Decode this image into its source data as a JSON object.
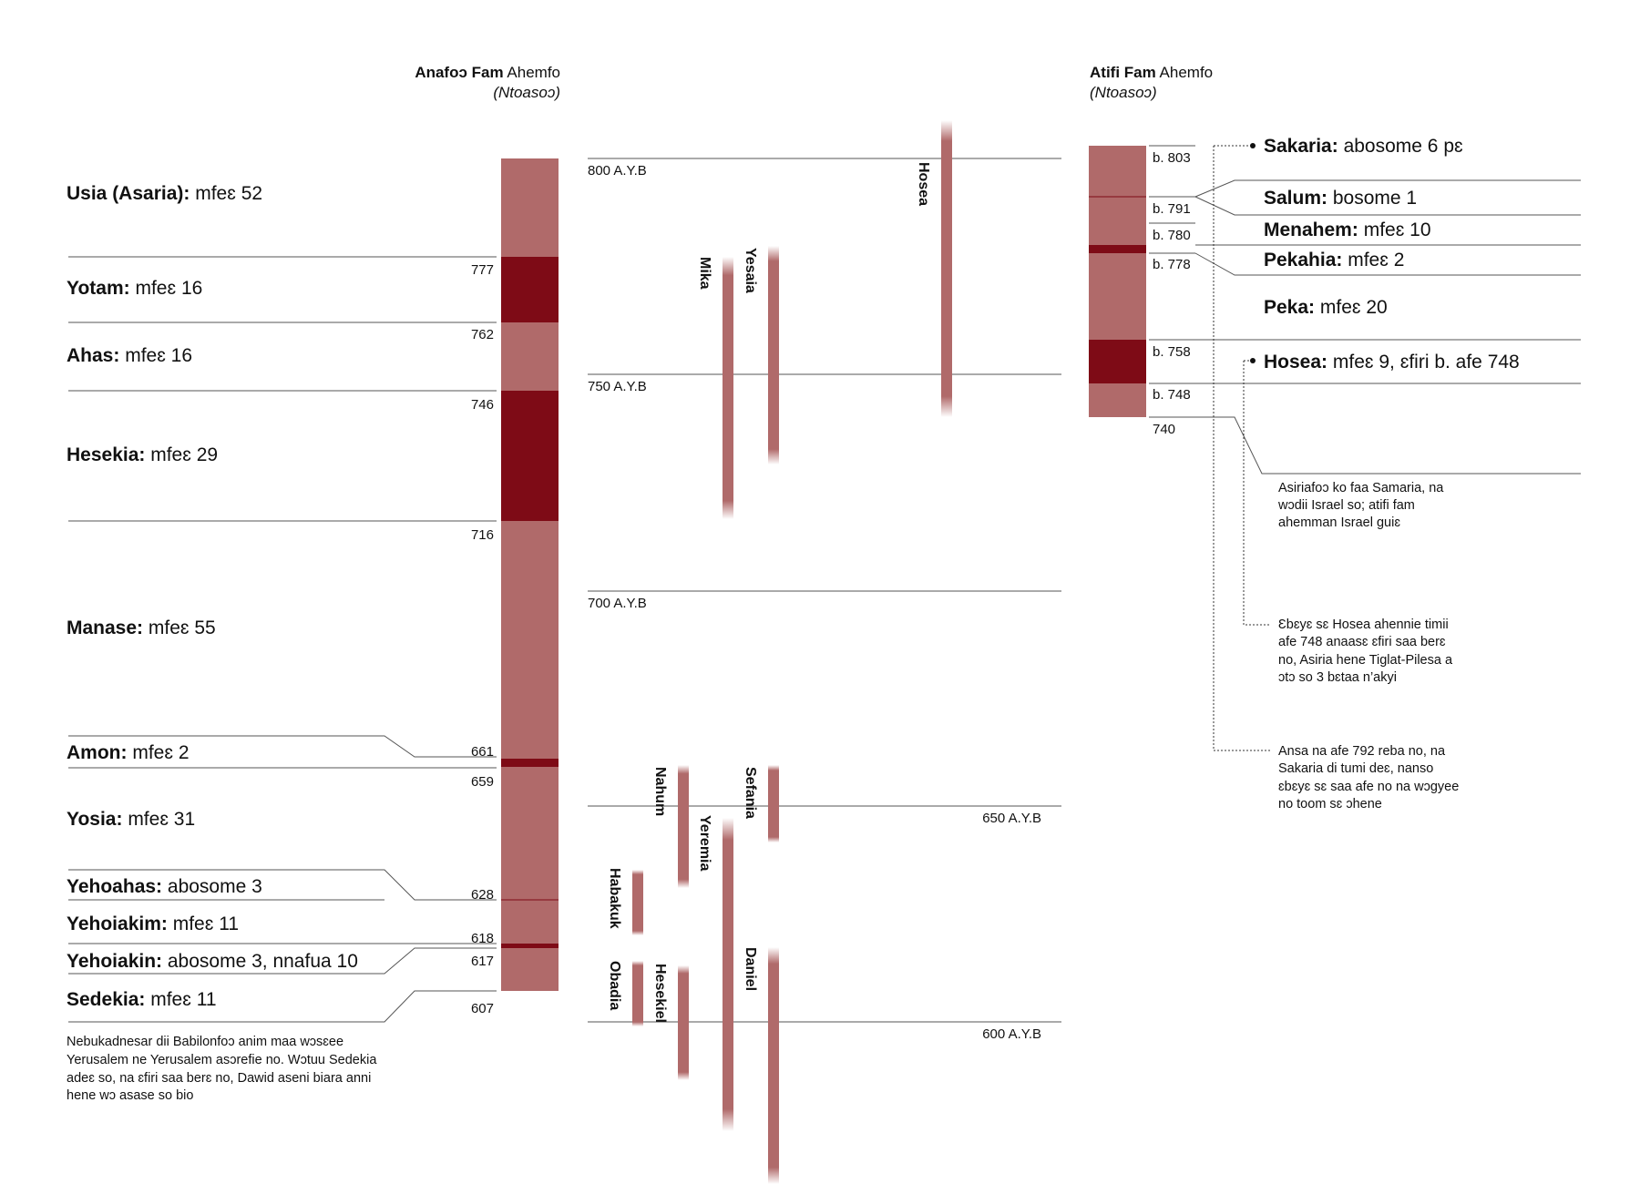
{
  "colors": {
    "reign_light": "#b06a6a",
    "reign_dark": "#7e0b16",
    "prophet": "#b06a6a",
    "line": "#555555"
  },
  "headers": {
    "south": {
      "bold": "Anafoɔ Fam",
      "rest": "Ahemfo",
      "sub": "(Ntoasoɔ)"
    },
    "north": {
      "bold": "Atifi Fam",
      "rest": "Ahemfo",
      "sub": "(Ntoasoɔ)"
    }
  },
  "year_labels": [
    "800 A.Y.B",
    "750 A.Y.B",
    "700 A.Y.B",
    "650 A.Y.B",
    "600 A.Y.B"
  ],
  "south_kings": [
    {
      "name": "Usia (Asaria):",
      "reign": "mfeɛ 52"
    },
    {
      "name": "Yotam:",
      "reign": "mfeɛ 16"
    },
    {
      "name": "Ahas:",
      "reign": "mfeɛ 16"
    },
    {
      "name": "Hesekia:",
      "reign": "mfeɛ 29"
    },
    {
      "name": "Manase:",
      "reign": "mfeɛ 55"
    },
    {
      "name": "Amon:",
      "reign": "mfeɛ 2"
    },
    {
      "name": "Yosia:",
      "reign": "mfeɛ 31"
    },
    {
      "name": "Yehoahas:",
      "reign": "abosome 3"
    },
    {
      "name": "Yehoiakim:",
      "reign": "mfeɛ 11"
    },
    {
      "name": "Yehoiakin:",
      "reign": "abosome 3, nnafua 10"
    },
    {
      "name": "Sedekia:",
      "reign": "mfeɛ 11"
    }
  ],
  "south_years": [
    "777",
    "762",
    "746",
    "716",
    "661",
    "659",
    "628",
    "618",
    "617",
    "607"
  ],
  "south_note": [
    "Nebukadnesar dii Babilonfoɔ anim maa wɔsɛee",
    "Yerusalem ne Yerusalem asɔrefie no. Wɔtuu Sedekia",
    "adeɛ so, na ɛfiri saa berɛ no, Dawid aseni biara anni",
    "hene wɔ asase so bio"
  ],
  "prophets": [
    "Hosea",
    "Mika",
    "Yesaia",
    "Nahum",
    "Sefania",
    "Yeremia",
    "Habakuk",
    "Obadia",
    "Hesekiel",
    "Daniel"
  ],
  "north_kings": [
    {
      "name": "Sakaria:",
      "reign": "abosome 6 pɛ"
    },
    {
      "name": "Salum:",
      "reign": "bosome 1"
    },
    {
      "name": "Menahem:",
      "reign": "mfeɛ 10"
    },
    {
      "name": "Pekahia:",
      "reign": "mfeɛ 2"
    },
    {
      "name": "Peka:",
      "reign": "mfeɛ 20"
    },
    {
      "name": "Hosea:",
      "reign": "mfeɛ 9, ɛfiri b. afe 748"
    }
  ],
  "north_years": [
    "b. 803",
    "b. 791",
    "b. 780",
    "b. 778",
    "b. 758",
    "b. 748",
    "740"
  ],
  "north_notes": [
    [
      "Asiriafoɔ ko faa Samaria, na",
      "wɔdii Israel so; atifi fam",
      "ahemman Israel guiɛ"
    ],
    [
      "Ɛbɛyɛ sɛ Hosea ahennie timii",
      "afe 748 anaasɛ ɛfiri saa berɛ",
      "no, Asiria hene Tiglat-Pilesa a",
      "ɔtɔ so 3 bɛtaa n’akyi"
    ],
    [
      "Ansa na afe 792 reba no, na",
      "Sakaria di tumi deɛ, nanso",
      "ɛbɛyɛ sɛ saa afe no na wɔgyee",
      "no toom sɛ ɔhene"
    ]
  ]
}
